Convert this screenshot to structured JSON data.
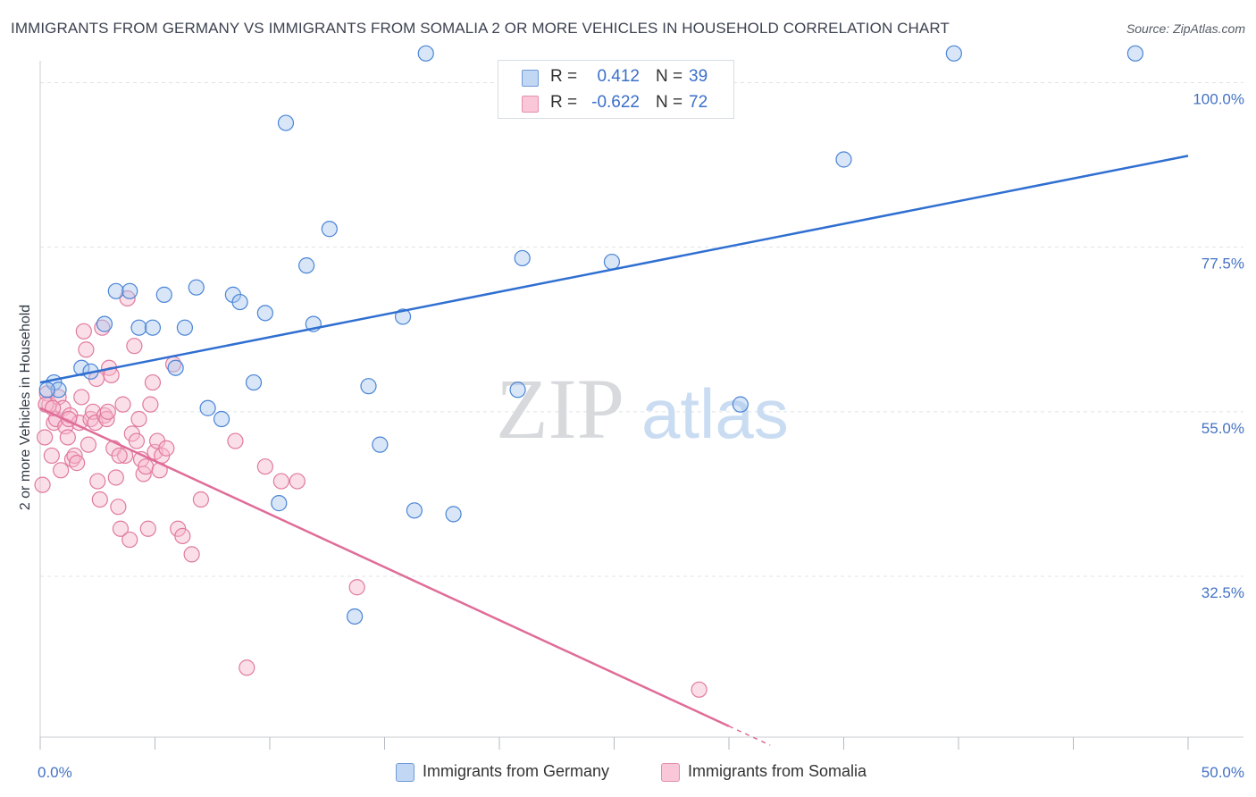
{
  "title": "IMMIGRANTS FROM GERMANY VS IMMIGRANTS FROM SOMALIA 2 OR MORE VEHICLES IN HOUSEHOLD CORRELATION CHART",
  "source": "Source: ZipAtlas.com",
  "watermark": {
    "zip": "ZIP",
    "atlas": "atlas"
  },
  "colors": {
    "germany_fill": "#a9c7ee",
    "germany_stroke": "#4a84d6",
    "germany_line": "#2f6fd1",
    "somalia_fill": "#f6b8cc",
    "somalia_stroke": "#e07a9e",
    "somalia_line": "#e06c98",
    "tick": "#4472c4",
    "grid": "#dfe3e8"
  },
  "legend": {
    "rows": [
      {
        "r_label": "R =",
        "r_value": "0.412",
        "n_label": "N =",
        "n_value": "39"
      },
      {
        "r_label": "R =",
        "r_value": "-0.622",
        "n_label": "N =",
        "n_value": "72"
      }
    ]
  },
  "bottom_legend": [
    "Immigrants from Germany",
    "Immigrants from Somalia"
  ],
  "chart_data": {
    "type": "scatter",
    "title": "IMMIGRANTS FROM GERMANY VS IMMIGRANTS FROM SOMALIA 2 OR MORE VEHICLES IN HOUSEHOLD CORRELATION CHART",
    "xlabel": "",
    "ylabel": "2 or more Vehicles in Household",
    "xlim": [
      0,
      50
    ],
    "ylim": [
      10.5,
      103
    ],
    "x_tick_labels": [
      "0.0%",
      "50.0%"
    ],
    "x_tick_values": [
      0,
      50
    ],
    "y_tick_labels": [
      "100.0%",
      "77.5%",
      "55.0%",
      "32.5%"
    ],
    "y_tick_values": [
      100,
      77.5,
      55,
      32.5
    ],
    "grid": true,
    "legend_position": "top-center",
    "series": [
      {
        "name": "Immigrants from Germany",
        "r": 0.412,
        "n": 39,
        "trend": {
          "x": [
            0,
            50
          ],
          "y": [
            59.0,
            90.0
          ]
        },
        "points": [
          [
            0.6,
            59
          ],
          [
            0.8,
            58
          ],
          [
            1.8,
            61
          ],
          [
            2.2,
            60.5
          ],
          [
            2.8,
            67
          ],
          [
            3.3,
            71.5
          ],
          [
            3.9,
            71.5
          ],
          [
            4.3,
            66.5
          ],
          [
            4.9,
            66.5
          ],
          [
            5.4,
            71
          ],
          [
            5.9,
            61
          ],
          [
            6.3,
            66.5
          ],
          [
            6.8,
            72
          ],
          [
            7.3,
            55.5
          ],
          [
            7.9,
            54
          ],
          [
            8.4,
            71
          ],
          [
            8.7,
            70
          ],
          [
            9.3,
            59
          ],
          [
            9.8,
            68.5
          ],
          [
            10.4,
            42.5
          ],
          [
            10.7,
            94.5
          ],
          [
            11.6,
            75
          ],
          [
            11.9,
            67
          ],
          [
            12.6,
            80
          ],
          [
            13.7,
            27
          ],
          [
            14.3,
            58.5
          ],
          [
            14.8,
            50.5
          ],
          [
            15.8,
            68
          ],
          [
            16.3,
            41.5
          ],
          [
            16.8,
            104
          ],
          [
            18.0,
            41
          ],
          [
            20.8,
            58
          ],
          [
            21.0,
            76
          ],
          [
            24.9,
            75.5
          ],
          [
            30.5,
            56
          ],
          [
            35.0,
            89.5
          ],
          [
            39.8,
            104
          ],
          [
            47.7,
            104
          ],
          [
            0.3,
            58
          ]
        ]
      },
      {
        "name": "Immigrants from Somalia",
        "r": -0.622,
        "n": 72,
        "trend": {
          "x": [
            0,
            30
          ],
          "y": [
            55.5,
            12.0
          ]
        },
        "points": [
          [
            0.1,
            45
          ],
          [
            0.2,
            51.5
          ],
          [
            0.3,
            57.5
          ],
          [
            0.4,
            56
          ],
          [
            0.5,
            49
          ],
          [
            0.6,
            53.5
          ],
          [
            0.7,
            54
          ],
          [
            0.8,
            57
          ],
          [
            0.9,
            47
          ],
          [
            1.0,
            55.5
          ],
          [
            1.1,
            53
          ],
          [
            1.2,
            51.5
          ],
          [
            1.3,
            54.5
          ],
          [
            1.4,
            48.5
          ],
          [
            1.5,
            49
          ],
          [
            1.6,
            48
          ],
          [
            1.7,
            53.5
          ],
          [
            1.8,
            57
          ],
          [
            1.9,
            66
          ],
          [
            2.0,
            63.5
          ],
          [
            2.1,
            50.5
          ],
          [
            2.2,
            54
          ],
          [
            2.3,
            55
          ],
          [
            2.4,
            53.5
          ],
          [
            2.5,
            45.5
          ],
          [
            2.6,
            43
          ],
          [
            2.7,
            66.5
          ],
          [
            2.8,
            54.5
          ],
          [
            2.9,
            54
          ],
          [
            3.0,
            61
          ],
          [
            3.1,
            60
          ],
          [
            3.2,
            50
          ],
          [
            3.3,
            46
          ],
          [
            3.4,
            42
          ],
          [
            3.5,
            39
          ],
          [
            3.6,
            56
          ],
          [
            3.7,
            49
          ],
          [
            3.8,
            70.5
          ],
          [
            3.9,
            37.5
          ],
          [
            4.0,
            52
          ],
          [
            4.1,
            64
          ],
          [
            4.2,
            51
          ],
          [
            4.3,
            54
          ],
          [
            4.4,
            48.5
          ],
          [
            4.5,
            46.5
          ],
          [
            4.6,
            47.5
          ],
          [
            4.7,
            39
          ],
          [
            4.8,
            56
          ],
          [
            4.9,
            59
          ],
          [
            5.0,
            49.5
          ],
          [
            5.1,
            51
          ],
          [
            5.2,
            47
          ],
          [
            5.3,
            49
          ],
          [
            5.5,
            50
          ],
          [
            5.8,
            61.5
          ],
          [
            6.0,
            39
          ],
          [
            6.2,
            38
          ],
          [
            6.6,
            35.5
          ],
          [
            7.0,
            43
          ],
          [
            8.5,
            51
          ],
          [
            9.0,
            20
          ],
          [
            9.8,
            47.5
          ],
          [
            10.5,
            45.5
          ],
          [
            11.2,
            45.5
          ],
          [
            13.8,
            31
          ],
          [
            28.7,
            17
          ],
          [
            0.25,
            56
          ],
          [
            0.55,
            55.5
          ],
          [
            1.25,
            54
          ],
          [
            2.45,
            59.5
          ],
          [
            3.45,
            49
          ],
          [
            2.95,
            55
          ]
        ]
      }
    ]
  }
}
